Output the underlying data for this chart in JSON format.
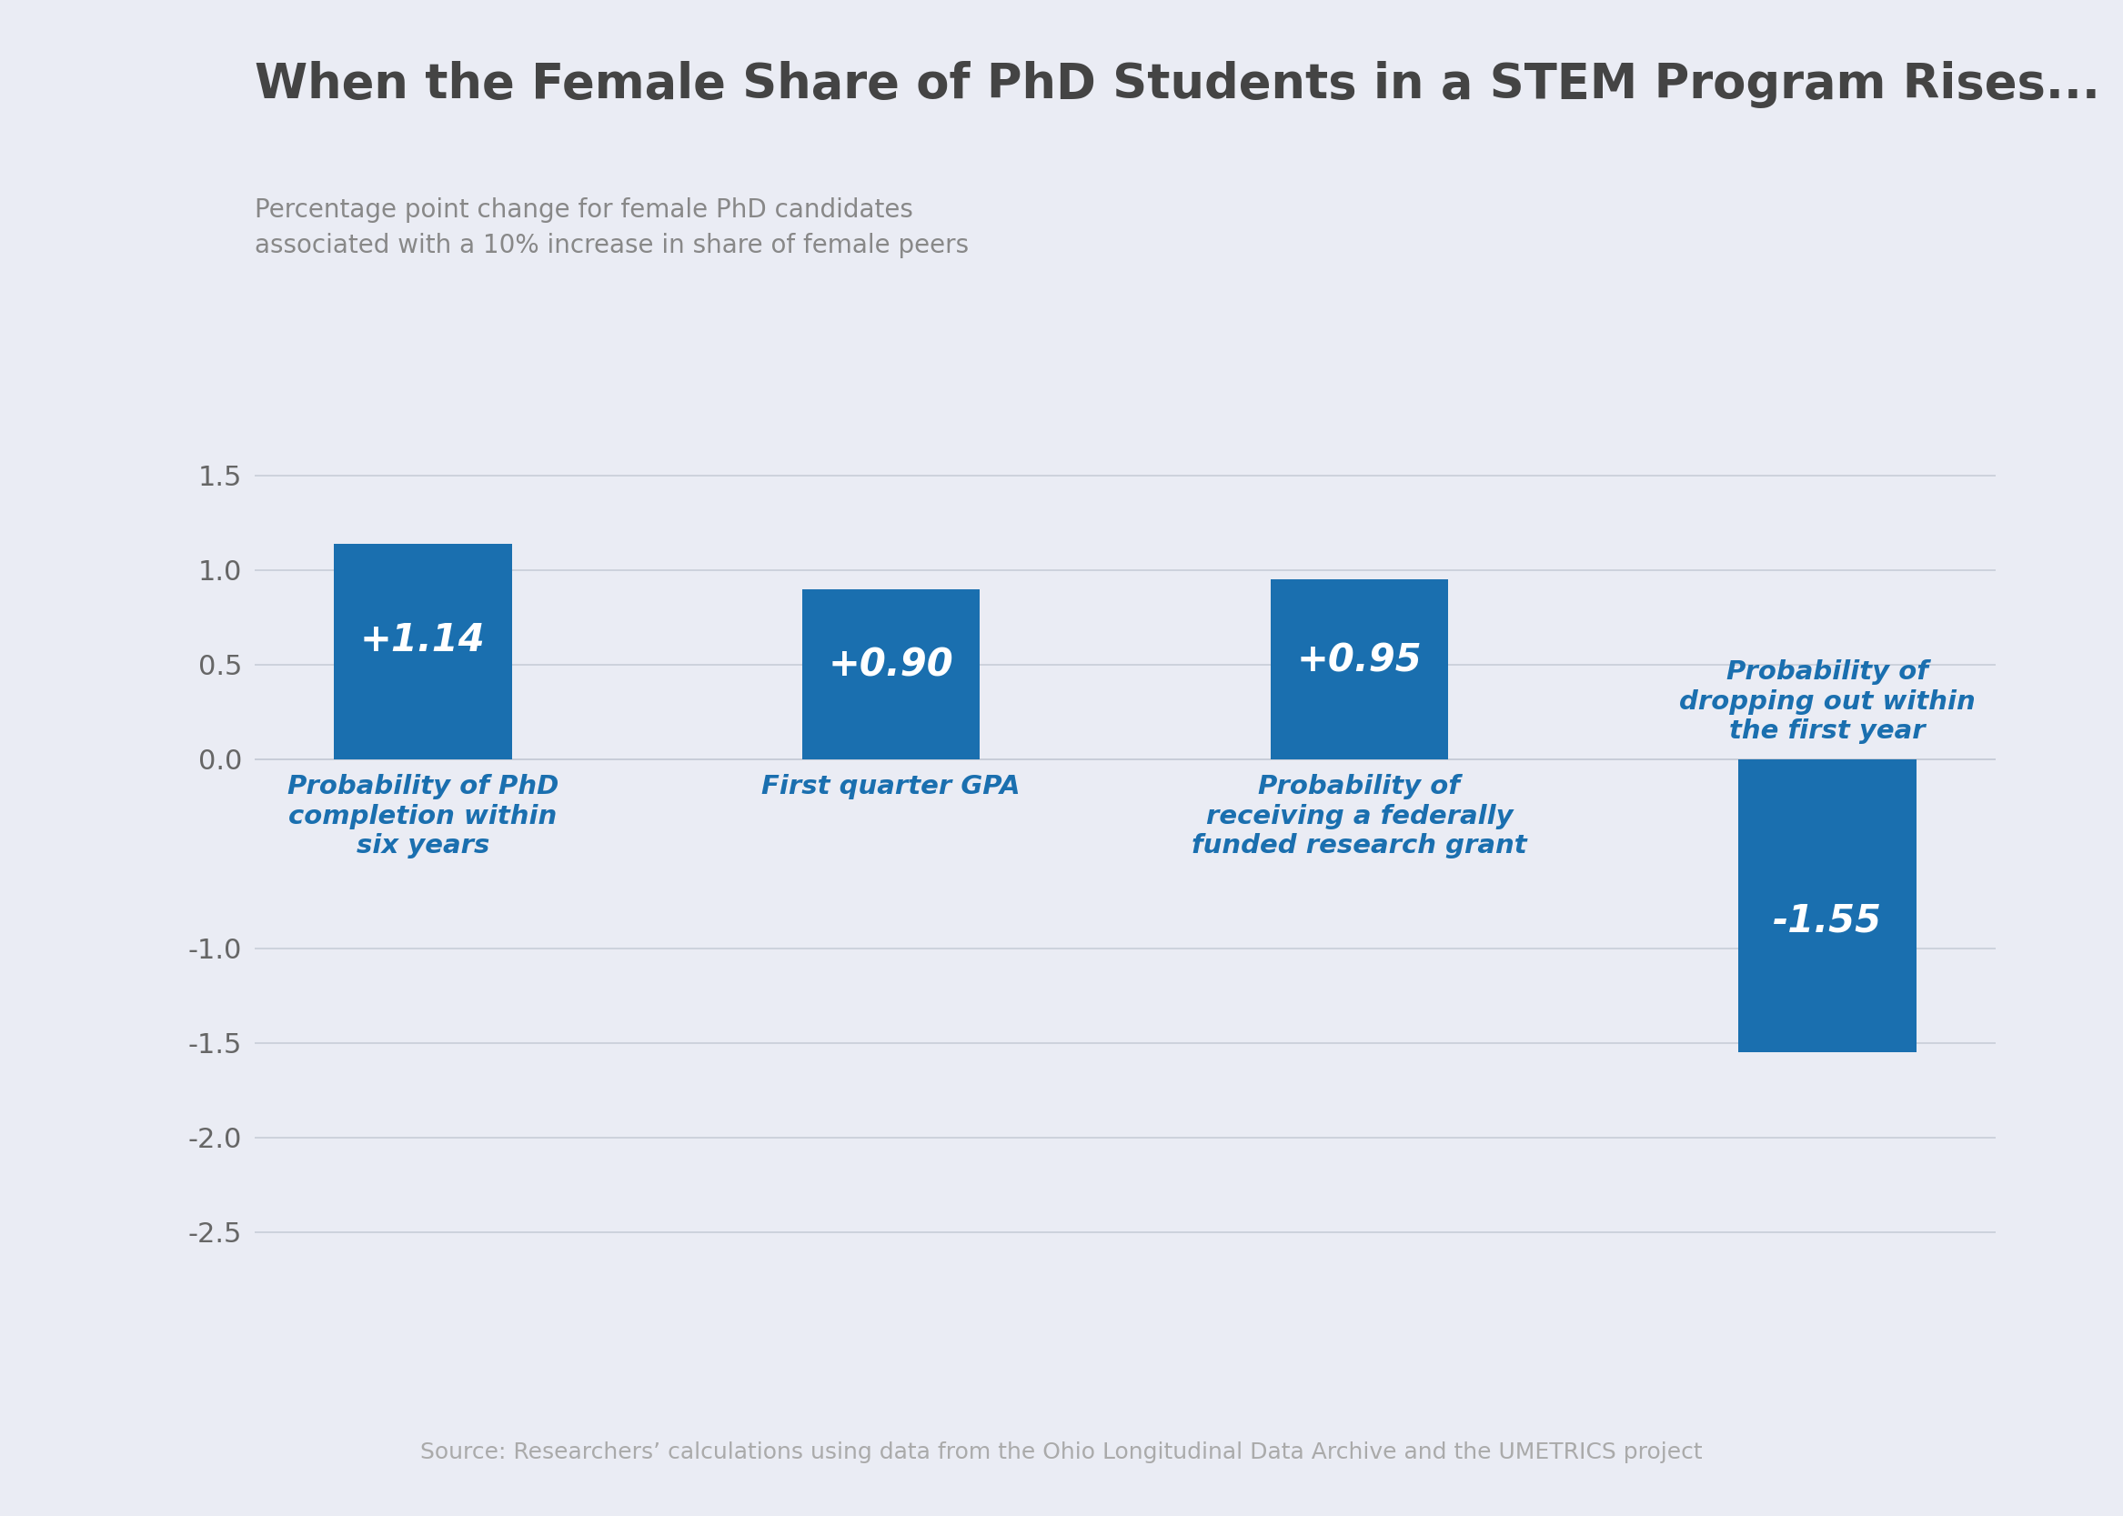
{
  "title": "When the Female Share of PhD Students in a STEM Program Rises...",
  "subtitle_line1": "Percentage point change for female PhD candidates",
  "subtitle_line2": "associated with a 10% increase in share of female peers",
  "source": "Source: Researchers’ calculations using data from the Ohio Longitudinal Data Archive and the UMETRICS project",
  "categories": [
    "Probability of PhD\ncompletion within\nsix years",
    "First quarter GPA",
    "Probability of\nreceiving a federally\nfunded research grant",
    "Probability of\ndropping out within\nthe first year"
  ],
  "values": [
    1.14,
    0.9,
    0.95,
    -1.55
  ],
  "bar_labels": [
    "+1.14",
    "+0.90",
    "+0.95",
    "-1.55"
  ],
  "bar_color": "#1a6faf",
  "background_color": "#eaecf4",
  "title_color": "#444444",
  "subtitle_color": "#888888",
  "source_color": "#aaaaaa",
  "ylim": [
    -2.8,
    1.85
  ],
  "yticks": [
    1.5,
    1.0,
    0.5,
    0.0,
    -1.0,
    -1.5,
    -2.0,
    -2.5
  ],
  "grid_color": "#c8cdd8",
  "bar_text_color": "#ffffff",
  "bar_width": 0.38
}
